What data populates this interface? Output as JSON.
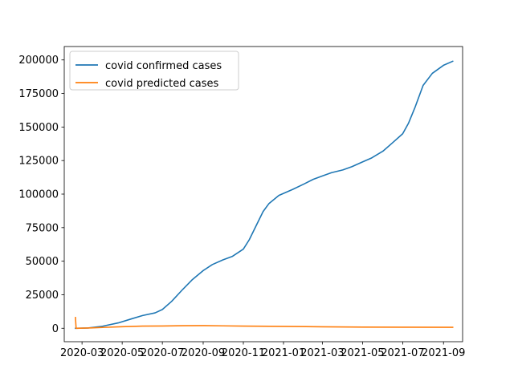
{
  "chart_data": {
    "type": "line",
    "title": "",
    "xlabel": "",
    "ylabel": "",
    "x_tick_labels": [
      "2020-03",
      "2020-05",
      "2020-07",
      "2020-09",
      "2020-11",
      "2021-01",
      "2021-03",
      "2021-05",
      "2021-07",
      "2021-09"
    ],
    "x_tick_dates": [
      "2020-03-01",
      "2020-05-01",
      "2020-07-01",
      "2020-09-01",
      "2020-11-01",
      "2021-01-01",
      "2021-03-01",
      "2021-05-01",
      "2021-07-01",
      "2021-09-01"
    ],
    "y_ticks": [
      0,
      25000,
      50000,
      75000,
      100000,
      125000,
      150000,
      175000,
      200000
    ],
    "xlim": [
      "2020-02-03",
      "2021-09-30"
    ],
    "ylim": [
      -10000,
      210000
    ],
    "grid": false,
    "legend_position": "upper-left",
    "series": [
      {
        "name": "covid confirmed cases",
        "color": "#1f77b4",
        "points": [
          [
            "2020-02-20",
            0
          ],
          [
            "2020-03-10",
            200
          ],
          [
            "2020-04-01",
            1500
          ],
          [
            "2020-04-25",
            4000
          ],
          [
            "2020-05-15",
            7000
          ],
          [
            "2020-06-01",
            9500
          ],
          [
            "2020-06-20",
            11500
          ],
          [
            "2020-07-01",
            14000
          ],
          [
            "2020-07-15",
            20000
          ],
          [
            "2020-08-01",
            29000
          ],
          [
            "2020-08-15",
            36000
          ],
          [
            "2020-09-01",
            43000
          ],
          [
            "2020-09-15",
            47500
          ],
          [
            "2020-10-01",
            51000
          ],
          [
            "2020-10-15",
            53500
          ],
          [
            "2020-11-01",
            59000
          ],
          [
            "2020-11-10",
            66000
          ],
          [
            "2020-11-20",
            76000
          ],
          [
            "2020-12-01",
            87000
          ],
          [
            "2020-12-10",
            93000
          ],
          [
            "2020-12-25",
            99000
          ],
          [
            "2021-01-15",
            103500
          ],
          [
            "2021-02-01",
            107500
          ],
          [
            "2021-02-15",
            111000
          ],
          [
            "2021-03-01",
            113500
          ],
          [
            "2021-03-15",
            116000
          ],
          [
            "2021-04-01",
            118000
          ],
          [
            "2021-04-15",
            120500
          ],
          [
            "2021-05-01",
            124000
          ],
          [
            "2021-05-15",
            127000
          ],
          [
            "2021-06-01",
            132000
          ],
          [
            "2021-06-15",
            138000
          ],
          [
            "2021-07-01",
            145000
          ],
          [
            "2021-07-10",
            153000
          ],
          [
            "2021-07-20",
            165000
          ],
          [
            "2021-08-01",
            181000
          ],
          [
            "2021-08-15",
            190000
          ],
          [
            "2021-09-01",
            196000
          ],
          [
            "2021-09-15",
            199000
          ]
        ]
      },
      {
        "name": "covid predicted cases",
        "color": "#ff7f0e",
        "points": [
          [
            "2020-02-20",
            8000
          ],
          [
            "2020-02-21",
            0
          ],
          [
            "2020-03-15",
            300
          ],
          [
            "2020-05-01",
            1200
          ],
          [
            "2020-06-01",
            1600
          ],
          [
            "2020-07-01",
            1700
          ],
          [
            "2020-08-01",
            1900
          ],
          [
            "2020-09-01",
            2000
          ],
          [
            "2020-10-01",
            1800
          ],
          [
            "2020-11-01",
            1600
          ],
          [
            "2021-01-01",
            1400
          ],
          [
            "2021-03-01",
            1100
          ],
          [
            "2021-05-01",
            900
          ],
          [
            "2021-07-01",
            800
          ],
          [
            "2021-09-15",
            700
          ]
        ]
      }
    ]
  }
}
